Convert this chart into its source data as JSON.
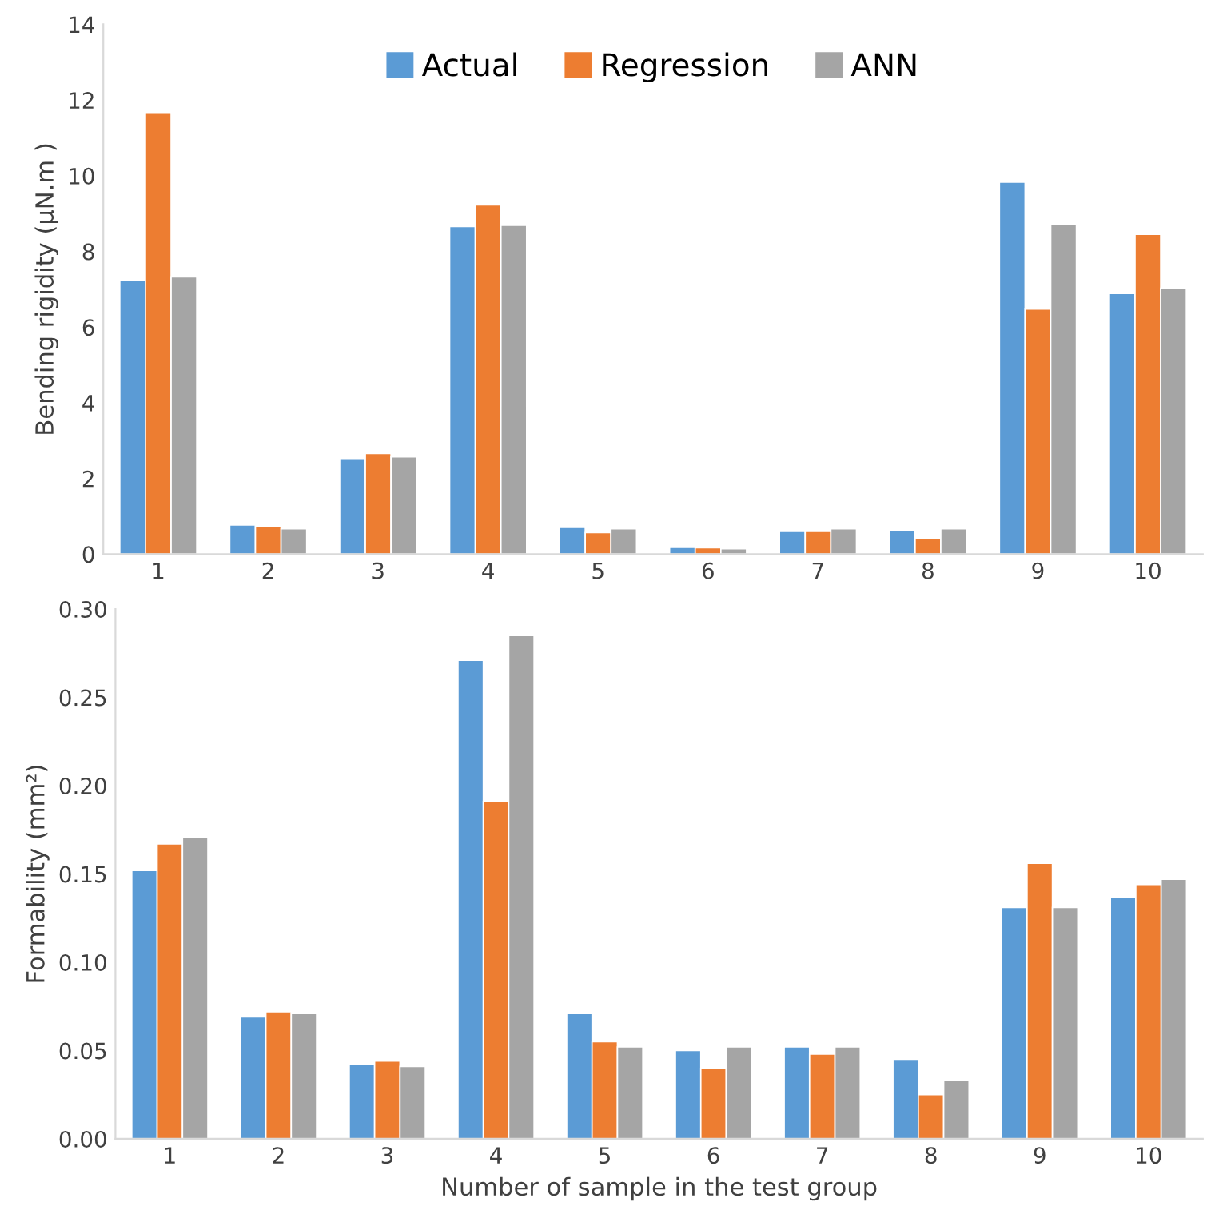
{
  "chart_data": [
    {
      "type": "bar",
      "ylabel": "Bending rigidity (µN.m )",
      "categories": [
        "1",
        "2",
        "3",
        "4",
        "5",
        "6",
        "7",
        "8",
        "9",
        "10"
      ],
      "series": [
        {
          "name": "Actual",
          "color": "#5b9bd5",
          "values": [
            7.23,
            0.77,
            2.53,
            8.66,
            0.71,
            0.18,
            0.6,
            0.64,
            9.83,
            6.89
          ]
        },
        {
          "name": "Regression",
          "color": "#ed7d31",
          "values": [
            11.65,
            0.74,
            2.66,
            9.23,
            0.57,
            0.17,
            0.6,
            0.41,
            6.48,
            8.45
          ]
        },
        {
          "name": "ANN",
          "color": "#a5a5a5",
          "values": [
            7.33,
            0.67,
            2.57,
            8.69,
            0.67,
            0.14,
            0.67,
            0.67,
            8.71,
            7.03
          ]
        }
      ],
      "ylim": [
        0,
        14
      ],
      "yticks": [
        0,
        2,
        4,
        6,
        8,
        10,
        12,
        14
      ],
      "grid": false,
      "legend": "top"
    },
    {
      "type": "bar",
      "ylabel": "Formability (mm²)",
      "xlabel": "Number of sample in the test group",
      "categories": [
        "1",
        "2",
        "3",
        "4",
        "5",
        "6",
        "7",
        "8",
        "9",
        "10"
      ],
      "series": [
        {
          "color": "#5b9bd5",
          "values": [
            0.152,
            0.069,
            0.042,
            0.271,
            0.071,
            0.05,
            0.052,
            0.045,
            0.131,
            0.137
          ]
        },
        {
          "color": "#ed7d31",
          "values": [
            0.167,
            0.072,
            0.044,
            0.191,
            0.055,
            0.04,
            0.048,
            0.025,
            0.156,
            0.144
          ]
        },
        {
          "color": "#a5a5a5",
          "values": [
            0.171,
            0.071,
            0.041,
            0.285,
            0.052,
            0.052,
            0.052,
            0.033,
            0.131,
            0.147
          ]
        }
      ],
      "ylim": [
        0,
        0.3
      ],
      "yticks": [
        {
          "value": 0,
          "label": "0.00"
        },
        {
          "value": 0.05,
          "label": "0.05"
        },
        {
          "value": 0.1,
          "label": "0.10"
        },
        {
          "value": 0.15,
          "label": "0.15"
        },
        {
          "value": 0.2,
          "label": "0.20"
        },
        {
          "value": 0.25,
          "label": "0.25"
        },
        {
          "value": 0.3,
          "label": "0.30"
        }
      ],
      "grid": false,
      "legend": false
    }
  ]
}
